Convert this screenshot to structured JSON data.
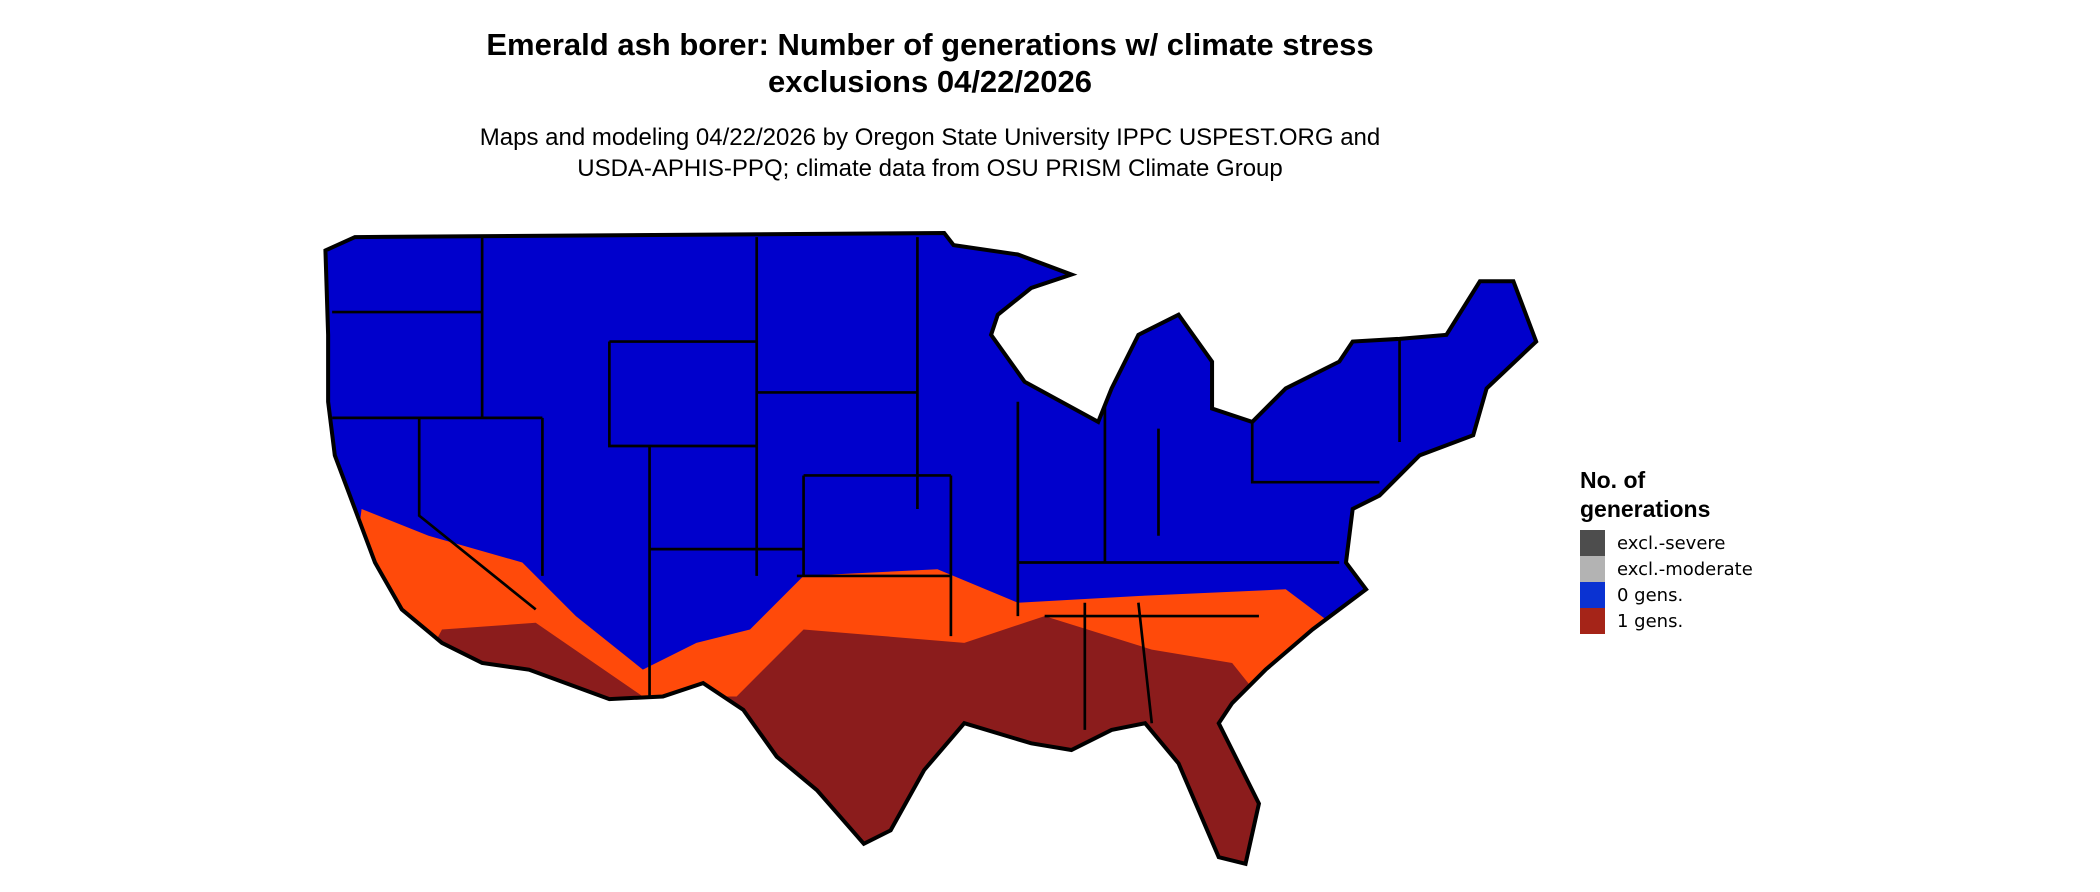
{
  "title_line1": "Emerald ash borer: Number of generations w/ climate stress",
  "title_line2": "exclusions 04/22/2026",
  "subtitle_line1": "Maps and modeling 04/22/2026 by Oregon State University IPPC USPEST.ORG and",
  "subtitle_line2": "USDA-APHIS-PPQ; climate data from OSU PRISM Climate Group",
  "map": {
    "region": "Contiguous United States",
    "fill_colors": {
      "zero_gens": "#0000cc",
      "one_gen_low": "#ff4a0a",
      "one_gen_high": "#8b1c1c",
      "borders": "#000000"
    }
  },
  "legend": {
    "title_line1": "No. of",
    "title_line2": "generations",
    "items": [
      {
        "label": "excl.-severe",
        "color": "#4d4d4d"
      },
      {
        "label": "excl.-moderate",
        "color": "#b3b3b3"
      },
      {
        "label": "0 gens.",
        "color": "#0a32d2"
      },
      {
        "label": "1 gens.",
        "color": "#a52418"
      }
    ]
  }
}
